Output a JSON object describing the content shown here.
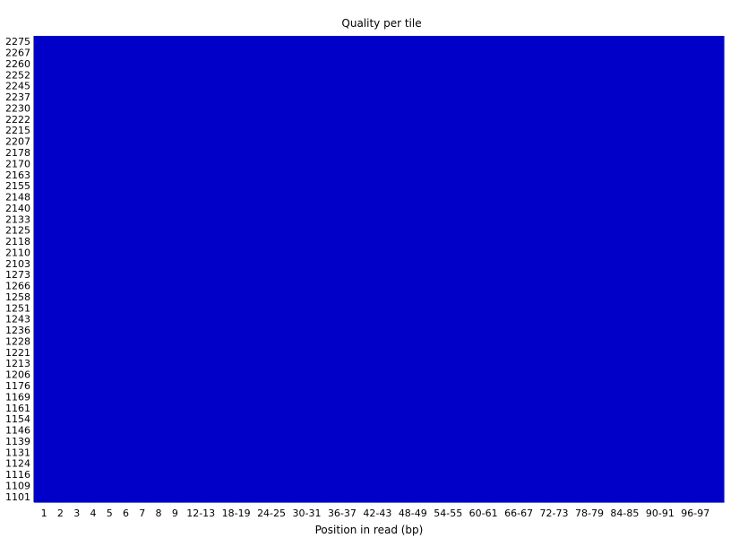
{
  "chart_data": {
    "type": "heatmap",
    "title": "Quality per tile",
    "xlabel": "Position in read (bp)",
    "ylabel": "",
    "x_categories": [
      "1",
      "2",
      "3",
      "4",
      "5",
      "6",
      "7",
      "8",
      "9",
      "12-13",
      "18-19",
      "24-25",
      "30-31",
      "36-37",
      "42-43",
      "48-49",
      "54-55",
      "60-61",
      "66-67",
      "72-73",
      "78-79",
      "84-85",
      "90-91",
      "96-97"
    ],
    "y_categories": [
      "2275",
      "2267",
      "2260",
      "2252",
      "2245",
      "2237",
      "2230",
      "2222",
      "2215",
      "2207",
      "2178",
      "2170",
      "2163",
      "2155",
      "2148",
      "2140",
      "2133",
      "2125",
      "2118",
      "2110",
      "2103",
      "1273",
      "1266",
      "1258",
      "1251",
      "1243",
      "1236",
      "1228",
      "1221",
      "1213",
      "1206",
      "1176",
      "1169",
      "1161",
      "1154",
      "1146",
      "1139",
      "1131",
      "1124",
      "1116",
      "1109",
      "1101"
    ],
    "cell_color": "#0000c8",
    "grid": false
  }
}
